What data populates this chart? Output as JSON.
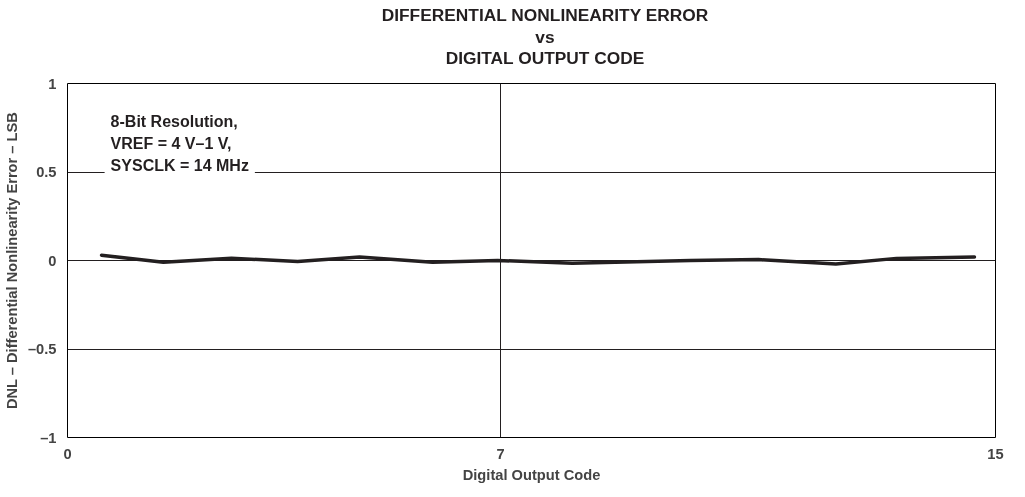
{
  "chart_data": {
    "type": "line",
    "title": "DIFFERENTIAL NONLINEARITY ERROR\nvs\nDIGITAL OUTPUT CODE",
    "xlabel": "Digital Output Code",
    "ylabel": "DNL – Differential Nonlinearity Error – LSB",
    "x": [
      0.55,
      1.55,
      2.65,
      3.72,
      4.72,
      5.9,
      6.95,
      8.16,
      10.07,
      11.17,
      12.42,
      13.4,
      14.66
    ],
    "series": [
      {
        "color": "#231f20",
        "values": [
          0.03,
          -0.01,
          0.013,
          -0.005,
          0.02,
          -0.01,
          0.0,
          -0.015,
          0.0,
          0.005,
          -0.02,
          0.012,
          0.02
        ]
      }
    ],
    "xlim": [
      0,
      15
    ],
    "xticks": [
      0,
      7,
      15
    ],
    "ylim": [
      -1,
      1
    ],
    "yticks": [
      {
        "value": -1,
        "label": "–1"
      },
      {
        "value": -0.5,
        "label": "–0.5"
      },
      0,
      0.5,
      1
    ],
    "grid": true,
    "marker": "none",
    "line_style": "solid",
    "annotations": [
      "8-Bit Resolution,\nVREF = 4 V–1 V,\nSYSCLK = 14 MHz"
    ]
  }
}
